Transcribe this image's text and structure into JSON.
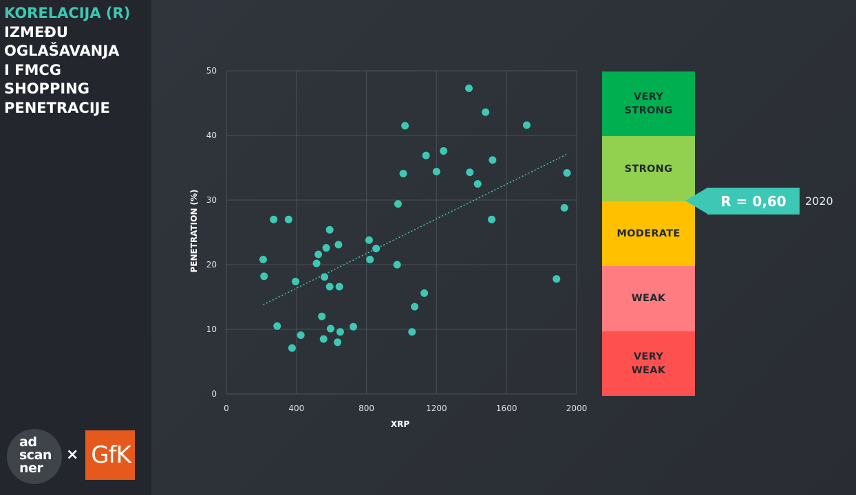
{
  "sidebar": {
    "title_accent": "KORELACIJA (R)",
    "title_lines": [
      "IZMEĐU",
      "OGLAŠAVANJA",
      "I FMCG",
      "SHOPPING",
      "PENETRACIJE"
    ],
    "logos": {
      "adscanner_text": "ad\nscan\nner",
      "separator": "×",
      "gfk_text": "GfK"
    }
  },
  "chart_data": {
    "type": "scatter",
    "xlabel": "XRP",
    "ylabel": "PENETRATION (%)",
    "xlim": [
      0,
      2000
    ],
    "ylim": [
      0,
      50
    ],
    "xticks": [
      0,
      400,
      800,
      1200,
      1600,
      2000
    ],
    "yticks": [
      0,
      10,
      20,
      30,
      40,
      50
    ],
    "grid": true,
    "point_color": "#3cc8b4",
    "points": [
      [
        210,
        20.8
      ],
      [
        215,
        18.2
      ],
      [
        270,
        27.0
      ],
      [
        290,
        10.5
      ],
      [
        355,
        27.0
      ],
      [
        375,
        7.1
      ],
      [
        395,
        17.4
      ],
      [
        425,
        9.1
      ],
      [
        515,
        20.2
      ],
      [
        525,
        21.6
      ],
      [
        545,
        12.0
      ],
      [
        555,
        8.5
      ],
      [
        560,
        18.1
      ],
      [
        570,
        22.6
      ],
      [
        590,
        16.6
      ],
      [
        590,
        25.4
      ],
      [
        595,
        10.1
      ],
      [
        635,
        8.0
      ],
      [
        640,
        23.1
      ],
      [
        645,
        16.6
      ],
      [
        650,
        9.6
      ],
      [
        725,
        10.4
      ],
      [
        815,
        23.8
      ],
      [
        820,
        20.8
      ],
      [
        855,
        22.5
      ],
      [
        975,
        20.0
      ],
      [
        980,
        29.4
      ],
      [
        1010,
        34.1
      ],
      [
        1020,
        41.5
      ],
      [
        1060,
        9.6
      ],
      [
        1075,
        13.5
      ],
      [
        1130,
        15.6
      ],
      [
        1140,
        36.9
      ],
      [
        1200,
        34.4
      ],
      [
        1240,
        37.6
      ],
      [
        1385,
        47.3
      ],
      [
        1390,
        34.3
      ],
      [
        1435,
        32.5
      ],
      [
        1480,
        43.6
      ],
      [
        1515,
        27.0
      ],
      [
        1520,
        36.2
      ],
      [
        1715,
        41.6
      ],
      [
        1885,
        17.8
      ],
      [
        1930,
        28.8
      ],
      [
        1945,
        34.2
      ]
    ],
    "trendline": {
      "x": [
        210,
        1945
      ],
      "y": [
        13.8,
        37.1
      ],
      "style": "dotted"
    }
  },
  "scale": {
    "bands": [
      {
        "label": "VERY\nSTRONG",
        "color": "#00b050"
      },
      {
        "label": "STRONG",
        "color": "#92d050"
      },
      {
        "label": "MODERATE",
        "color": "#ffc000"
      },
      {
        "label": "WEAK",
        "color": "#ff7c80"
      },
      {
        "label": "VERY\nWEAK",
        "color": "#ff5050"
      }
    ]
  },
  "result": {
    "value_label": "R = 0,60",
    "year": "2020",
    "color": "#3cc8b4"
  }
}
